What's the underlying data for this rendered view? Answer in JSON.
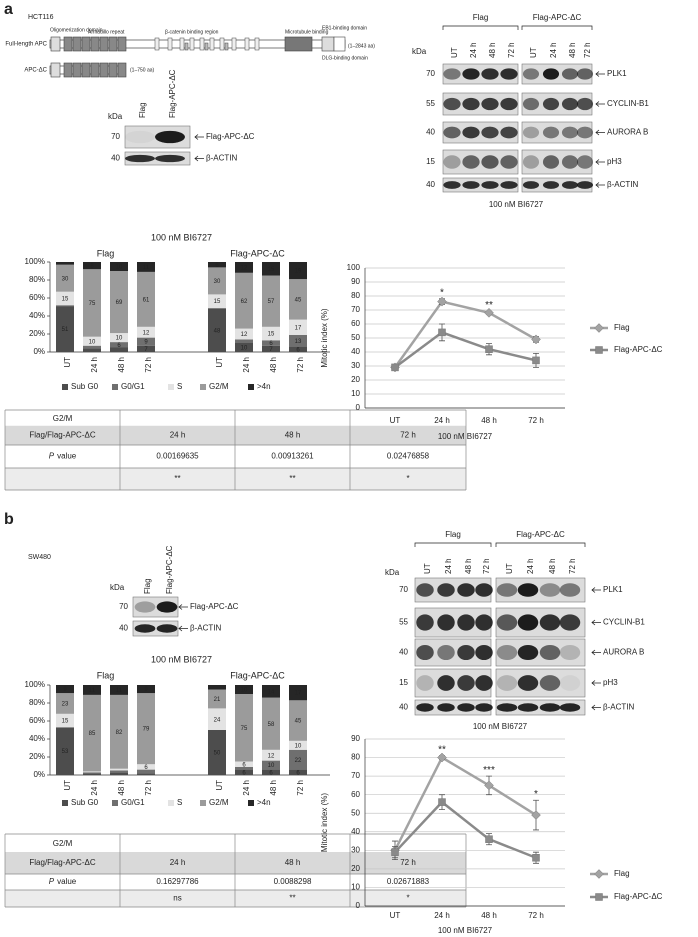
{
  "panel_labels": [
    "a",
    "b"
  ],
  "panel_a": {
    "cell_line": "HCT116",
    "diagram": {
      "full_length": "Full-length APC",
      "truncated": "APC-ΔC",
      "full_length_range": "(1–2843 aa)",
      "truncated_range": "(1–750 aa)",
      "domains": [
        "Oligomerization domain",
        "Armadillo repeat",
        "β-catenin binding region",
        "Microtubule binding",
        "EB1-binding domain",
        "DLG-binding domain"
      ]
    },
    "blot_small": {
      "kda": "kDa",
      "lanes": [
        "Flag",
        "Flag-APC-ΔC"
      ],
      "markers": [
        "70",
        "40"
      ],
      "proteins": [
        "Flag-APC-ΔC",
        "β-ACTIN"
      ]
    },
    "blot_large": {
      "kda": "kDa",
      "groups": [
        "Flag",
        "Flag-APC-ΔC"
      ],
      "lanes": [
        "UT",
        "24 h",
        "48 h",
        "72 h"
      ],
      "markers": [
        "70",
        "55",
        "40",
        "15",
        "40"
      ],
      "proteins": [
        "PLK1",
        "CYCLIN-B1",
        "AURORA B",
        "pH3",
        "β-ACTIN"
      ],
      "treatment": "100 nM BI6727"
    },
    "table": {
      "header": [
        "G2/M",
        "Flag/Flag-APC-ΔC"
      ],
      "columns": [
        "24 h",
        "48 h",
        "72 h"
      ],
      "p_label": [
        "P",
        "value"
      ],
      "p_values": [
        0.00169635,
        0.00913261,
        0.02476858
      ],
      "significance": [
        "**",
        "**",
        "*"
      ]
    }
  },
  "panel_b": {
    "cell_line": "SW480",
    "blot_small": {
      "kda": "kDa",
      "lanes": [
        "Flag",
        "Flag-APC-ΔC"
      ],
      "markers": [
        "70",
        "40"
      ],
      "proteins": [
        "Flag-APC-ΔC",
        "β-ACTIN"
      ]
    },
    "blot_large": {
      "kda": "kDa",
      "groups": [
        "Flag",
        "Flag-APC-ΔC"
      ],
      "lanes": [
        "UT",
        "24 h",
        "48 h",
        "72 h"
      ],
      "markers": [
        "70",
        "55",
        "40",
        "15",
        "40"
      ],
      "proteins": [
        "PLK1",
        "CYCLIN-B1",
        "AURORA B",
        "pH3",
        "β-ACTIN"
      ],
      "treatment": "100 nM BI6727"
    },
    "table": {
      "header": [
        "G2/M",
        "Flag/Flag-APC-ΔC"
      ],
      "columns": [
        "24 h",
        "48 h",
        "72 h"
      ],
      "p_label": [
        "P",
        "value"
      ],
      "p_values": [
        0.16297786,
        0.0088298,
        0.02671883
      ],
      "significance": [
        "ns",
        "**",
        "*"
      ]
    }
  },
  "chart_data": [
    {
      "type": "stacked_bar",
      "title": "100 nM BI6727",
      "groups": [
        "Flag",
        "Flag-APC-ΔC"
      ],
      "categories": [
        "UT",
        "24 h",
        "48 h",
        "72 h",
        "UT",
        "24 h",
        "48 h",
        "72 h"
      ],
      "ylim": [
        0,
        100
      ],
      "yticks": [
        {
          "value": 0,
          "label": "0%"
        },
        {
          "value": 20,
          "label": "20%"
        },
        {
          "value": 40,
          "label": "40%"
        },
        {
          "value": 60,
          "label": "60%"
        },
        {
          "value": 80,
          "label": "80%"
        },
        {
          "value": 100,
          "label": "100%"
        }
      ],
      "legend": "bottom",
      "series": [
        {
          "name": "Sub G0",
          "color": "#4d4d4d",
          "values": [
            51,
            4,
            5,
            7,
            48,
            10,
            7,
            6
          ]
        },
        {
          "name": "G0/G1",
          "color": "#6f6f6f",
          "values": [
            1,
            3,
            6,
            9,
            1,
            4,
            6,
            13
          ]
        },
        {
          "name": "S",
          "color": "#e3e3e3",
          "values": [
            15,
            10,
            10,
            12,
            15,
            12,
            15,
            17
          ]
        },
        {
          "name": "G2/M",
          "color": "#9b9b9b",
          "values": [
            30,
            75,
            69,
            61,
            30,
            62,
            57,
            45
          ]
        },
        {
          "name": ">4n",
          "color": "#262626",
          "values": [
            3,
            8,
            10,
            11,
            6,
            12,
            15,
            19
          ]
        }
      ]
    },
    {
      "type": "line",
      "categories": [
        "UT",
        "24 h",
        "48 h",
        "72 h"
      ],
      "xlabel": "100 nM BI6727",
      "ylabel": "Mitotic index (%)",
      "ylim": [
        0,
        100
      ],
      "yticks": [
        0,
        10,
        20,
        30,
        40,
        50,
        60,
        70,
        80,
        90,
        100
      ],
      "grid": true,
      "legend": "right",
      "series": [
        {
          "name": "Flag",
          "color": "#a3a3a3",
          "marker": "diamond",
          "values": [
            29,
            76,
            68,
            49
          ],
          "errors": [
            1,
            2,
            1,
            2
          ]
        },
        {
          "name": "Flag-APC-ΔC",
          "color": "#8a8a8a",
          "marker": "square",
          "values": [
            29,
            54,
            42,
            34
          ],
          "errors": [
            1,
            6,
            4,
            5
          ]
        }
      ],
      "significance": [
        null,
        "*",
        "**",
        null
      ]
    },
    {
      "type": "stacked_bar",
      "title": "100 nM BI6727",
      "groups": [
        "Flag",
        "Flag-APC-ΔC"
      ],
      "categories": [
        "UT",
        "24 h",
        "48 h",
        "72 h",
        "UT",
        "24 h",
        "48 h",
        "72 h"
      ],
      "ylim": [
        0,
        100
      ],
      "yticks": [
        {
          "value": 0,
          "label": "0%"
        },
        {
          "value": 20,
          "label": "20%"
        },
        {
          "value": 40,
          "label": "40%"
        },
        {
          "value": 60,
          "label": "60%"
        },
        {
          "value": 80,
          "label": "80%"
        },
        {
          "value": 100,
          "label": "100%"
        }
      ],
      "legend": "bottom",
      "series": [
        {
          "name": "Sub G0",
          "color": "#4d4d4d",
          "values": [
            53,
            2,
            3,
            2,
            50,
            6,
            6,
            6
          ]
        },
        {
          "name": "G0/G1",
          "color": "#6f6f6f",
          "values": [
            0,
            1,
            2,
            4,
            0,
            3,
            10,
            22
          ]
        },
        {
          "name": "S",
          "color": "#e3e3e3",
          "values": [
            15,
            1,
            2,
            6,
            24,
            6,
            12,
            10
          ]
        },
        {
          "name": "G2/M",
          "color": "#9b9b9b",
          "values": [
            23,
            85,
            82,
            79,
            21,
            75,
            58,
            45
          ]
        },
        {
          "name": ">4n",
          "color": "#262626",
          "values": [
            9,
            11,
            11,
            9,
            5,
            10,
            14,
            17
          ]
        }
      ]
    },
    {
      "type": "line",
      "categories": [
        "UT",
        "24 h",
        "48 h",
        "72 h"
      ],
      "xlabel": "100 nM BI6727",
      "ylabel": "Mitotic index (%)",
      "ylim": [
        0,
        90
      ],
      "yticks": [
        0,
        10,
        20,
        30,
        40,
        50,
        60,
        70,
        80,
        90
      ],
      "grid": true,
      "legend": "right",
      "series": [
        {
          "name": "Flag",
          "color": "#a3a3a3",
          "marker": "diamond",
          "values": [
            30,
            80,
            65,
            49
          ],
          "errors": [
            5,
            1,
            5,
            8
          ]
        },
        {
          "name": "Flag-APC-ΔC",
          "color": "#8a8a8a",
          "marker": "square",
          "values": [
            29,
            56,
            36,
            26
          ],
          "errors": [
            3,
            4,
            3,
            3
          ]
        }
      ],
      "significance": [
        null,
        "**",
        "***",
        "*"
      ]
    }
  ]
}
